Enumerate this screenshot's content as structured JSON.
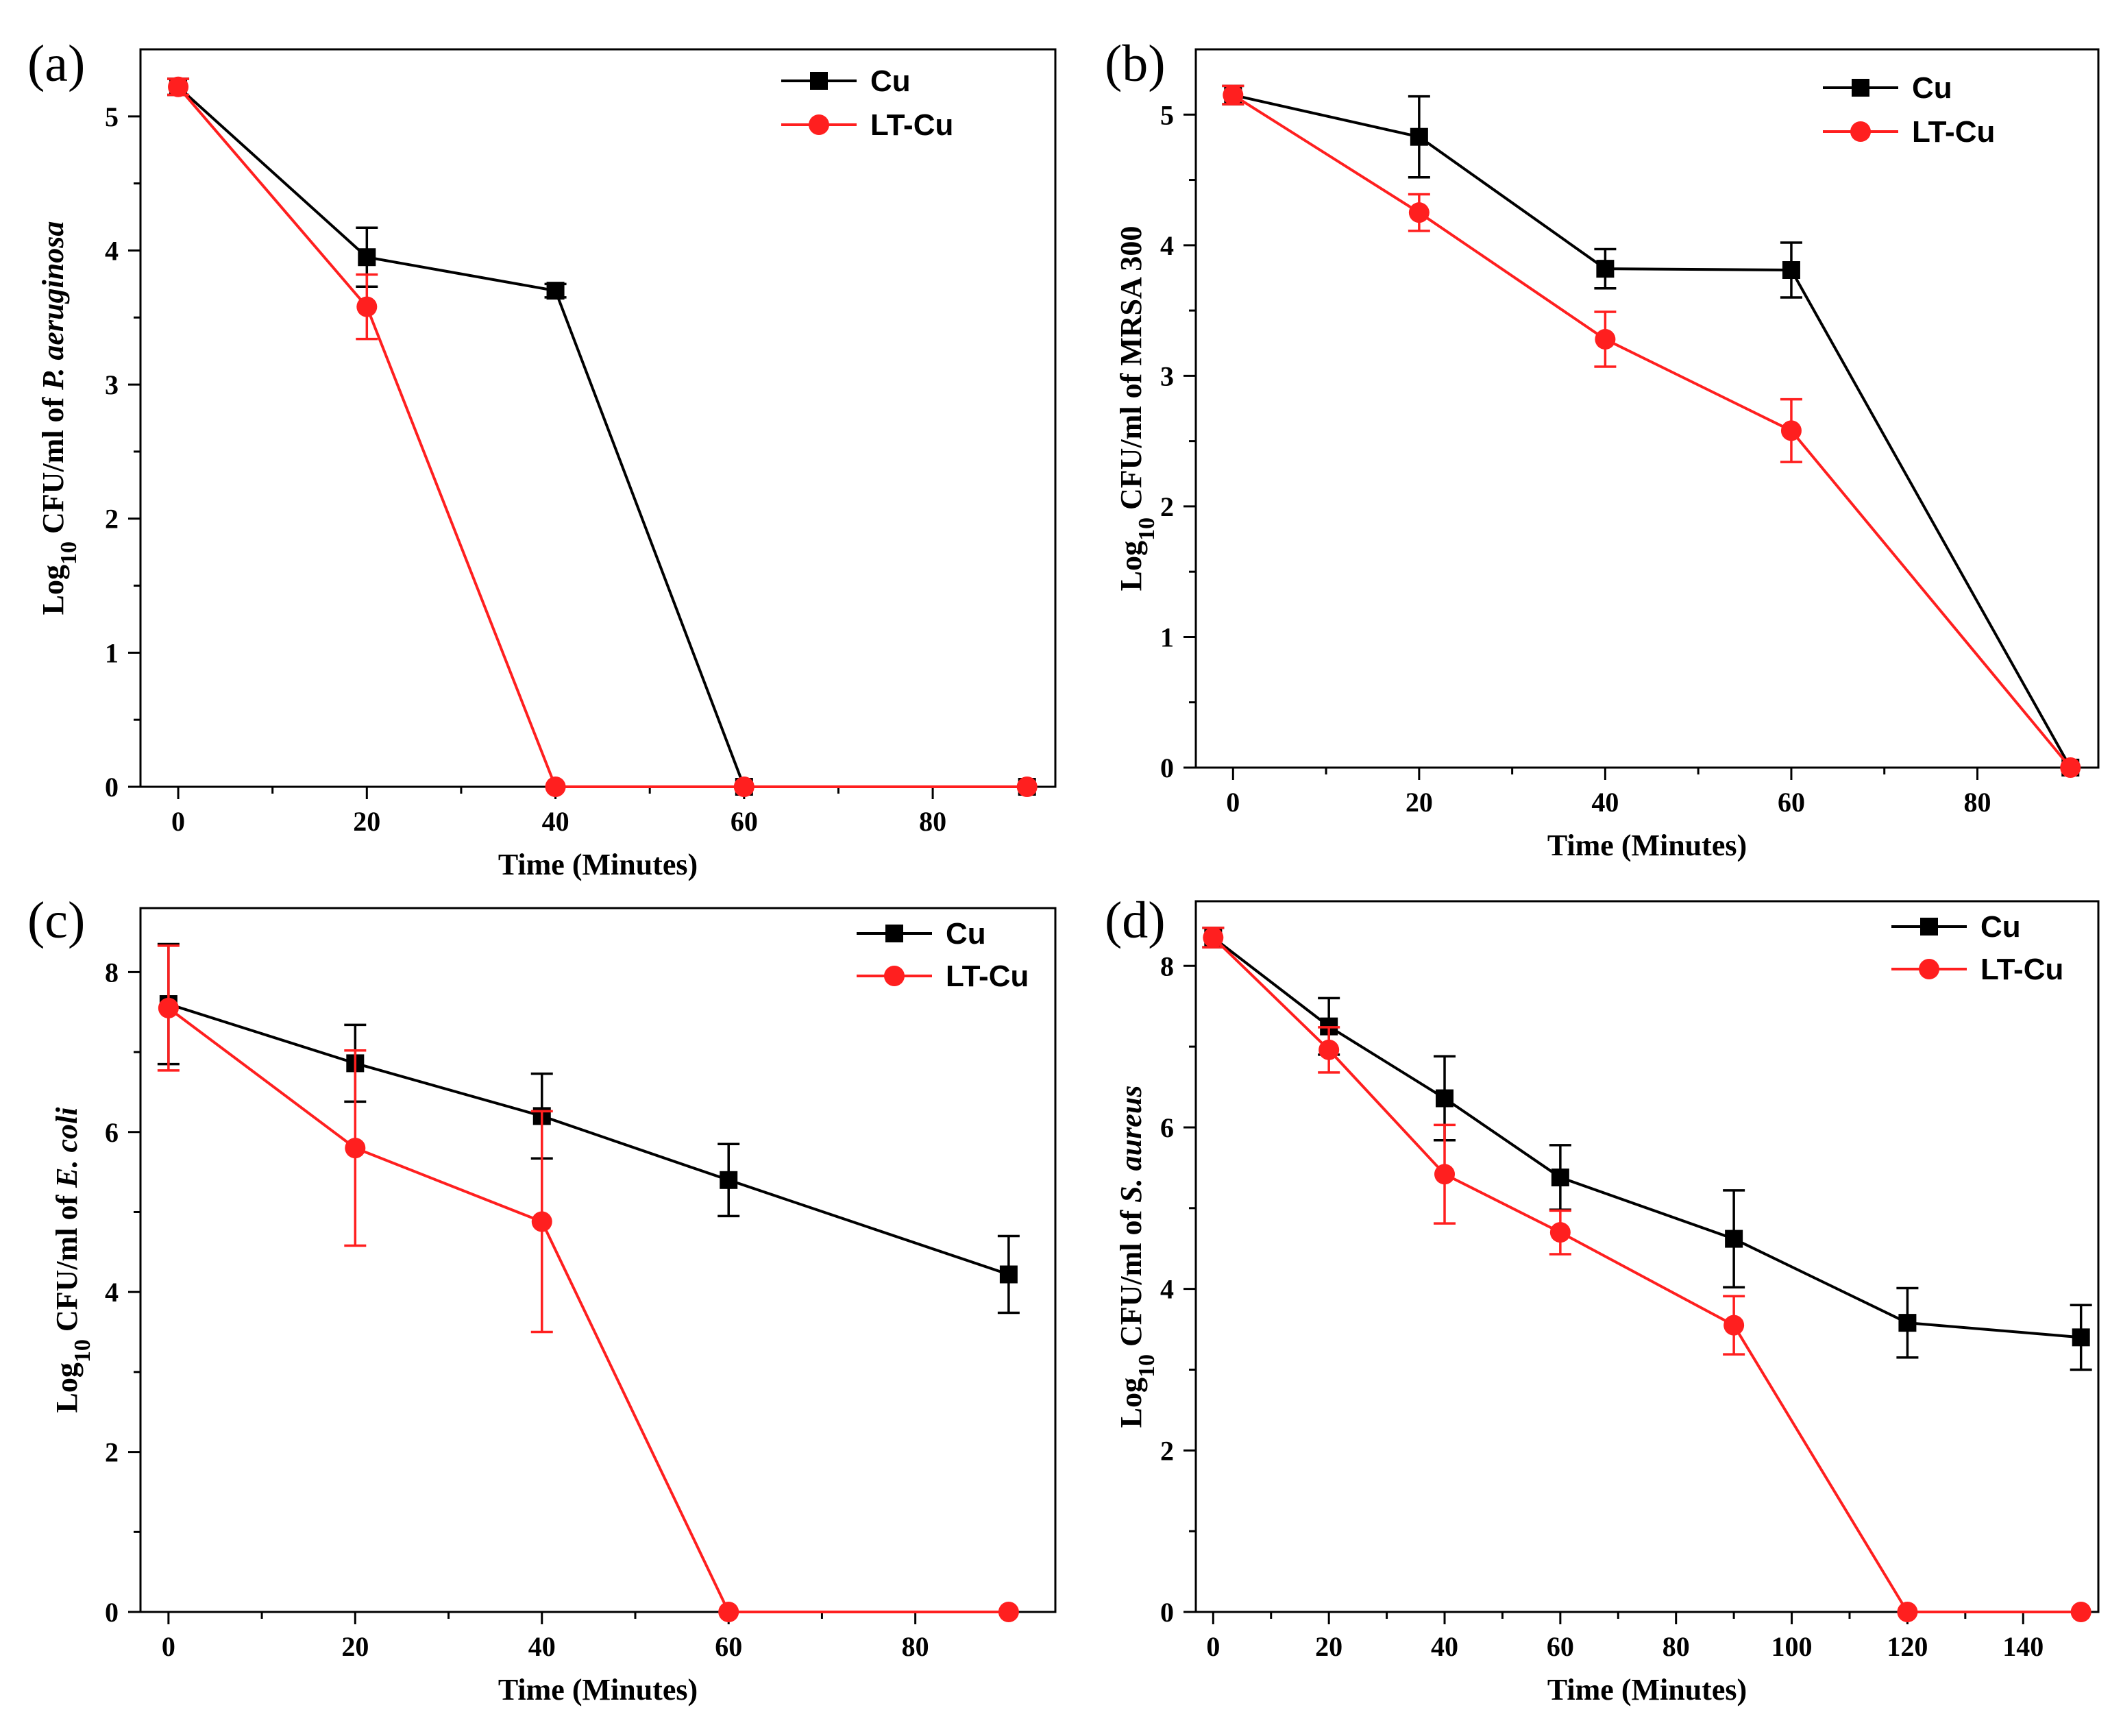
{
  "colors": {
    "cu": "#000000",
    "ltcu": "#ff1f1f"
  },
  "chart_data": [
    {
      "type": "line",
      "panel_label": "(a)",
      "xlabel": "Time (Minutes)",
      "ylabel": {
        "prefix": "Log",
        "sub": "10",
        "mid": " CFU/ml of ",
        "organism": "P. aeruginosa"
      },
      "xlim": [
        -4,
        93
      ],
      "ylim": [
        0,
        5.5
      ],
      "xticks": [
        0,
        20,
        40,
        60,
        80
      ],
      "xtick_labels": [
        "0",
        "20",
        "40",
        "60",
        "80"
      ],
      "yticks": [
        0,
        1,
        2,
        3,
        4,
        5
      ],
      "ytick_labels": [
        "0",
        "1",
        "2",
        "3",
        "4",
        "5"
      ],
      "legend_position": "top-right",
      "series": [
        {
          "name": "Cu",
          "marker": "square",
          "x": [
            0,
            20,
            40,
            60,
            90
          ],
          "values": [
            5.22,
            3.95,
            3.7,
            0.0,
            0.0
          ],
          "err": [
            0.06,
            0.22,
            0.05,
            0.0,
            0.0
          ]
        },
        {
          "name": "LT-Cu",
          "marker": "circle",
          "x": [
            0,
            20,
            40,
            60,
            90
          ],
          "values": [
            5.22,
            3.58,
            0.0,
            0.0,
            0.0
          ],
          "err": [
            0.06,
            0.24,
            0.0,
            0.0,
            0.0
          ]
        }
      ]
    },
    {
      "type": "line",
      "panel_label": "(b)",
      "xlabel": "Time (Minutes)",
      "ylabel": {
        "prefix": "Log",
        "sub": "10",
        "mid": " CFU/ml of MRSA 300",
        "organism": ""
      },
      "xlim": [
        -4,
        93
      ],
      "ylim": [
        0,
        5.5
      ],
      "xticks": [
        0,
        20,
        40,
        60,
        80
      ],
      "xtick_labels": [
        "0",
        "20",
        "40",
        "60",
        "80"
      ],
      "yticks": [
        0,
        1,
        2,
        3,
        4,
        5
      ],
      "ytick_labels": [
        "0",
        "1",
        "2",
        "3",
        "4",
        "5"
      ],
      "legend_position": "top-right",
      "series": [
        {
          "name": "Cu",
          "marker": "square",
          "x": [
            0,
            20,
            40,
            60,
            90
          ],
          "values": [
            5.15,
            4.83,
            3.82,
            3.81,
            0.0
          ],
          "err": [
            0.07,
            0.31,
            0.15,
            0.21,
            0.0
          ]
        },
        {
          "name": "LT-Cu",
          "marker": "circle",
          "x": [
            0,
            20,
            40,
            60,
            90
          ],
          "values": [
            5.15,
            4.25,
            3.28,
            2.58,
            0.0
          ],
          "err": [
            0.07,
            0.14,
            0.21,
            0.24,
            0.0
          ]
        }
      ]
    },
    {
      "type": "line",
      "panel_label": "(c)",
      "xlabel": "Time (Minutes)",
      "ylabel": {
        "prefix": "Log",
        "sub": "10",
        "mid": " CFU/ml of ",
        "organism": "E. coli"
      },
      "xlim": [
        -3,
        95
      ],
      "ylim": [
        0,
        8.8
      ],
      "xticks": [
        0,
        20,
        40,
        60,
        80
      ],
      "xtick_labels": [
        "0",
        "20",
        "40",
        "60",
        "80"
      ],
      "yticks": [
        0,
        2,
        4,
        6,
        8
      ],
      "ytick_labels": [
        "0",
        "2",
        "4",
        "6",
        "8"
      ],
      "legend_position": "top-right",
      "series": [
        {
          "name": "Cu",
          "marker": "square",
          "x": [
            0,
            20,
            40,
            60,
            90
          ],
          "values": [
            7.6,
            6.86,
            6.2,
            5.4,
            4.22
          ],
          "err": [
            0.75,
            0.48,
            0.53,
            0.45,
            0.48
          ]
        },
        {
          "name": "LT-Cu",
          "marker": "circle",
          "x": [
            0,
            20,
            40,
            60,
            90
          ],
          "values": [
            7.55,
            5.8,
            4.88,
            0.0,
            0.0
          ],
          "err": [
            0.78,
            1.22,
            1.38,
            0.0,
            0.0
          ]
        }
      ]
    },
    {
      "type": "line",
      "panel_label": "(d)",
      "xlabel": "Time (Minutes)",
      "ylabel": {
        "prefix": "Log",
        "sub": "10",
        "mid": " CFU/ml of ",
        "organism": "S. aureus"
      },
      "xlim": [
        -3,
        153
      ],
      "ylim": [
        0,
        8.8
      ],
      "xticks": [
        0,
        20,
        40,
        60,
        80,
        100,
        120,
        140
      ],
      "xtick_labels": [
        "0",
        "20",
        "40",
        "60",
        "80",
        "100",
        "120",
        "140"
      ],
      "yticks": [
        0,
        2,
        4,
        6,
        8
      ],
      "ytick_labels": [
        "0",
        "2",
        "4",
        "6",
        "8"
      ],
      "legend_position": "top-right",
      "series": [
        {
          "name": "Cu",
          "marker": "square",
          "x": [
            0,
            20,
            40,
            60,
            90,
            120,
            150
          ],
          "values": [
            8.35,
            7.25,
            6.36,
            5.38,
            4.62,
            3.58,
            3.4
          ],
          "err": [
            0.12,
            0.35,
            0.52,
            0.4,
            0.6,
            0.43,
            0.4
          ]
        },
        {
          "name": "LT-Cu",
          "marker": "circle",
          "x": [
            0,
            20,
            40,
            60,
            90,
            120,
            150
          ],
          "values": [
            8.35,
            6.96,
            5.42,
            4.7,
            3.55,
            0.0,
            0.0
          ],
          "err": [
            0.12,
            0.28,
            0.61,
            0.27,
            0.36,
            0.0,
            0.0
          ]
        }
      ]
    }
  ]
}
